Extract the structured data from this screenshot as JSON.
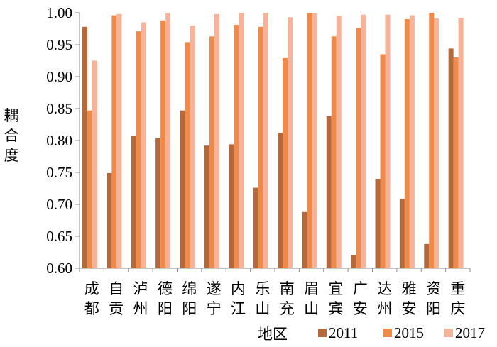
{
  "chart_data": {
    "type": "bar",
    "title": "",
    "xlabel": "地区",
    "ylabel": "耦合度",
    "ylim": [
      0.6,
      1.0
    ],
    "yticks": [
      "0.60",
      "0.65",
      "0.70",
      "0.75",
      "0.80",
      "0.85",
      "0.90",
      "0.95",
      "1.00"
    ],
    "categories": [
      "成都",
      "自贡",
      "泸州",
      "德阳",
      "绵阳",
      "遂宁",
      "内江",
      "乐山",
      "南充",
      "眉山",
      "宜宾",
      "广安",
      "达州",
      "雅安",
      "资阳",
      "重庆"
    ],
    "series": [
      {
        "name": "2011",
        "color": "#b5683a",
        "values": [
          0.978,
          0.749,
          0.807,
          0.804,
          0.847,
          0.792,
          0.794,
          0.726,
          0.812,
          0.688,
          0.838,
          0.62,
          0.74,
          0.709,
          0.638,
          0.944
        ]
      },
      {
        "name": "2015",
        "color": "#f08a4b",
        "values": [
          0.847,
          0.996,
          0.971,
          0.988,
          0.954,
          0.963,
          0.981,
          0.978,
          0.929,
          1.0,
          0.963,
          0.976,
          0.935,
          0.99,
          1.0,
          0.93
        ]
      },
      {
        "name": "2017",
        "color": "#f5b399",
        "values": [
          0.925,
          0.998,
          0.985,
          1.0,
          0.98,
          0.998,
          1.0,
          1.0,
          0.993,
          1.0,
          0.995,
          0.997,
          0.997,
          0.996,
          0.991,
          0.992
        ]
      }
    ],
    "legend_position": "bottom-right",
    "grid": false
  }
}
